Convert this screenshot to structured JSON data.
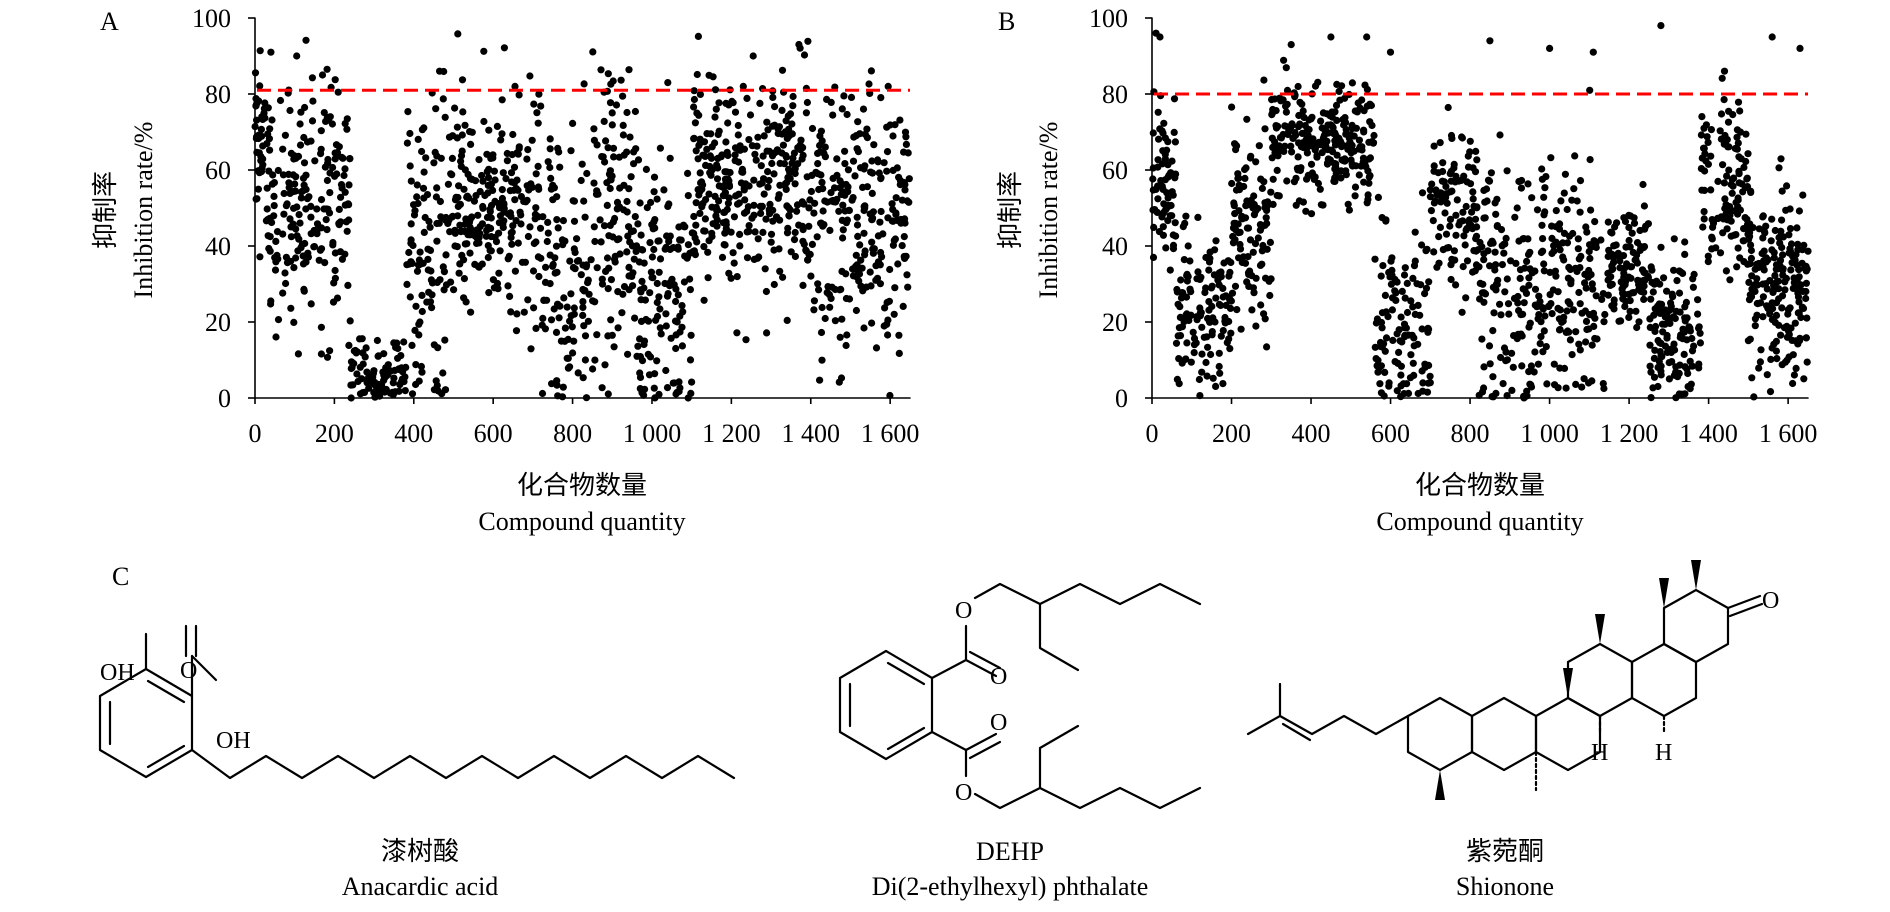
{
  "chart_data": [
    {
      "type": "scatter",
      "panel": "A",
      "title": "",
      "ylabel_cn": "抑制率",
      "ylabel_en": "Inhibition rate/%",
      "xlabel_cn": "化合物数量",
      "xlabel_en": "Compound quantity",
      "xlim": [
        0,
        1650
      ],
      "ylim": [
        0,
        100
      ],
      "xticks": [
        0,
        200,
        400,
        600,
        800,
        1000,
        1200,
        1400,
        1600
      ],
      "xtick_labels": [
        "0",
        "200",
        "400",
        "600",
        "800",
        "1 000",
        "1 200",
        "1 400",
        "1 600"
      ],
      "yticks": [
        0,
        20,
        40,
        60,
        80,
        100
      ],
      "threshold": 81,
      "threshold_color": "#ff0000",
      "point_color": "#000000",
      "n_points": 1650,
      "clusters": [
        {
          "x": [
            0,
            30
          ],
          "mean": 68,
          "sd": 10,
          "n": 40
        },
        {
          "x": [
            30,
            240
          ],
          "mean": 52,
          "sd": 15,
          "n": 210
        },
        {
          "x": [
            240,
            380
          ],
          "mean": 6,
          "sd": 5,
          "n": 90
        },
        {
          "x": [
            380,
            480
          ],
          "mean": 40,
          "sd": 25,
          "n": 100
        },
        {
          "x": [
            480,
            720
          ],
          "mean": 50,
          "sd": 14,
          "n": 250
        },
        {
          "x": [
            720,
            860
          ],
          "mean": 32,
          "sd": 20,
          "n": 120
        },
        {
          "x": [
            860,
            960
          ],
          "mean": 48,
          "sd": 18,
          "n": 110
        },
        {
          "x": [
            960,
            1100
          ],
          "mean": 28,
          "sd": 18,
          "n": 140
        },
        {
          "x": [
            1100,
            1260
          ],
          "mean": 57,
          "sd": 12,
          "n": 180
        },
        {
          "x": [
            1260,
            1400
          ],
          "mean": 56,
          "sd": 16,
          "n": 150
        },
        {
          "x": [
            1400,
            1650
          ],
          "mean": 48,
          "sd": 18,
          "n": 250
        }
      ],
      "outliers": [
        [
          40,
          91
        ],
        [
          105,
          90
        ],
        [
          170,
          85
        ],
        [
          465,
          86
        ],
        [
          655,
          82
        ],
        [
          1040,
          83
        ],
        [
          1230,
          82
        ],
        [
          1255,
          90
        ],
        [
          1595,
          82
        ]
      ]
    },
    {
      "type": "scatter",
      "panel": "B",
      "title": "",
      "ylabel_cn": "抑制率",
      "ylabel_en": "Inhibition rate/%",
      "xlabel_cn": "化合物数量",
      "xlabel_en": "Compound quantity",
      "xlim": [
        0,
        1650
      ],
      "ylim": [
        0,
        100
      ],
      "xticks": [
        0,
        200,
        400,
        600,
        800,
        1000,
        1200,
        1400,
        1600
      ],
      "xtick_labels": [
        "0",
        "200",
        "400",
        "600",
        "800",
        "1 000",
        "1 200",
        "1 400",
        "1 600"
      ],
      "yticks": [
        0,
        20,
        40,
        60,
        80,
        100
      ],
      "threshold": 80,
      "threshold_color": "#ff0000",
      "point_color": "#000000",
      "n_points": 1650,
      "clusters": [
        {
          "x": [
            0,
            60
          ],
          "mean": 55,
          "sd": 12,
          "n": 70
        },
        {
          "x": [
            60,
            200
          ],
          "mean": 22,
          "sd": 10,
          "n": 130
        },
        {
          "x": [
            200,
            300
          ],
          "mean": 48,
          "sd": 14,
          "n": 110
        },
        {
          "x": [
            300,
            560
          ],
          "mean": 68,
          "sd": 8,
          "n": 260
        },
        {
          "x": [
            560,
            700
          ],
          "mean": 20,
          "sd": 12,
          "n": 120
        },
        {
          "x": [
            700,
            820
          ],
          "mean": 50,
          "sd": 10,
          "n": 110
        },
        {
          "x": [
            820,
            960
          ],
          "mean": 30,
          "sd": 20,
          "n": 130
        },
        {
          "x": [
            960,
            1150
          ],
          "mean": 30,
          "sd": 15,
          "n": 170
        },
        {
          "x": [
            1150,
            1250
          ],
          "mean": 33,
          "sd": 7,
          "n": 100
        },
        {
          "x": [
            1250,
            1380
          ],
          "mean": 18,
          "sd": 10,
          "n": 130
        },
        {
          "x": [
            1380,
            1500
          ],
          "mean": 55,
          "sd": 12,
          "n": 120
        },
        {
          "x": [
            1500,
            1650
          ],
          "mean": 30,
          "sd": 12,
          "n": 200
        }
      ],
      "outliers": [
        [
          10,
          96
        ],
        [
          20,
          95
        ],
        [
          350,
          93
        ],
        [
          450,
          95
        ],
        [
          540,
          95
        ],
        [
          600,
          91
        ],
        [
          850,
          94
        ],
        [
          1000,
          92
        ],
        [
          1110,
          91
        ],
        [
          1280,
          98
        ],
        [
          1560,
          95
        ],
        [
          1630,
          92
        ],
        [
          1440,
          86
        ]
      ]
    }
  ],
  "panel_c": {
    "label": "C",
    "compounds": [
      {
        "name_cn": "漆树酸",
        "name_en": "Anacardic acid",
        "atoms": {
          "oh_top": "OH",
          "o_carbonyl": "O",
          "oh_acid": "OH"
        }
      },
      {
        "name_cn": "DEHP",
        "name_en": "Di(2-ethylhexyl) phthalate",
        "atoms": {
          "o_ester_top": "O",
          "o_carbonyl_top": "O",
          "o_carbonyl_bottom": "O",
          "o_ester_bottom": "O"
        }
      },
      {
        "name_cn": "紫菀酮",
        "name_en": "Shionone",
        "atoms": {
          "o_ketone": "O",
          "h_1": "H",
          "h_2": "H"
        }
      }
    ]
  }
}
